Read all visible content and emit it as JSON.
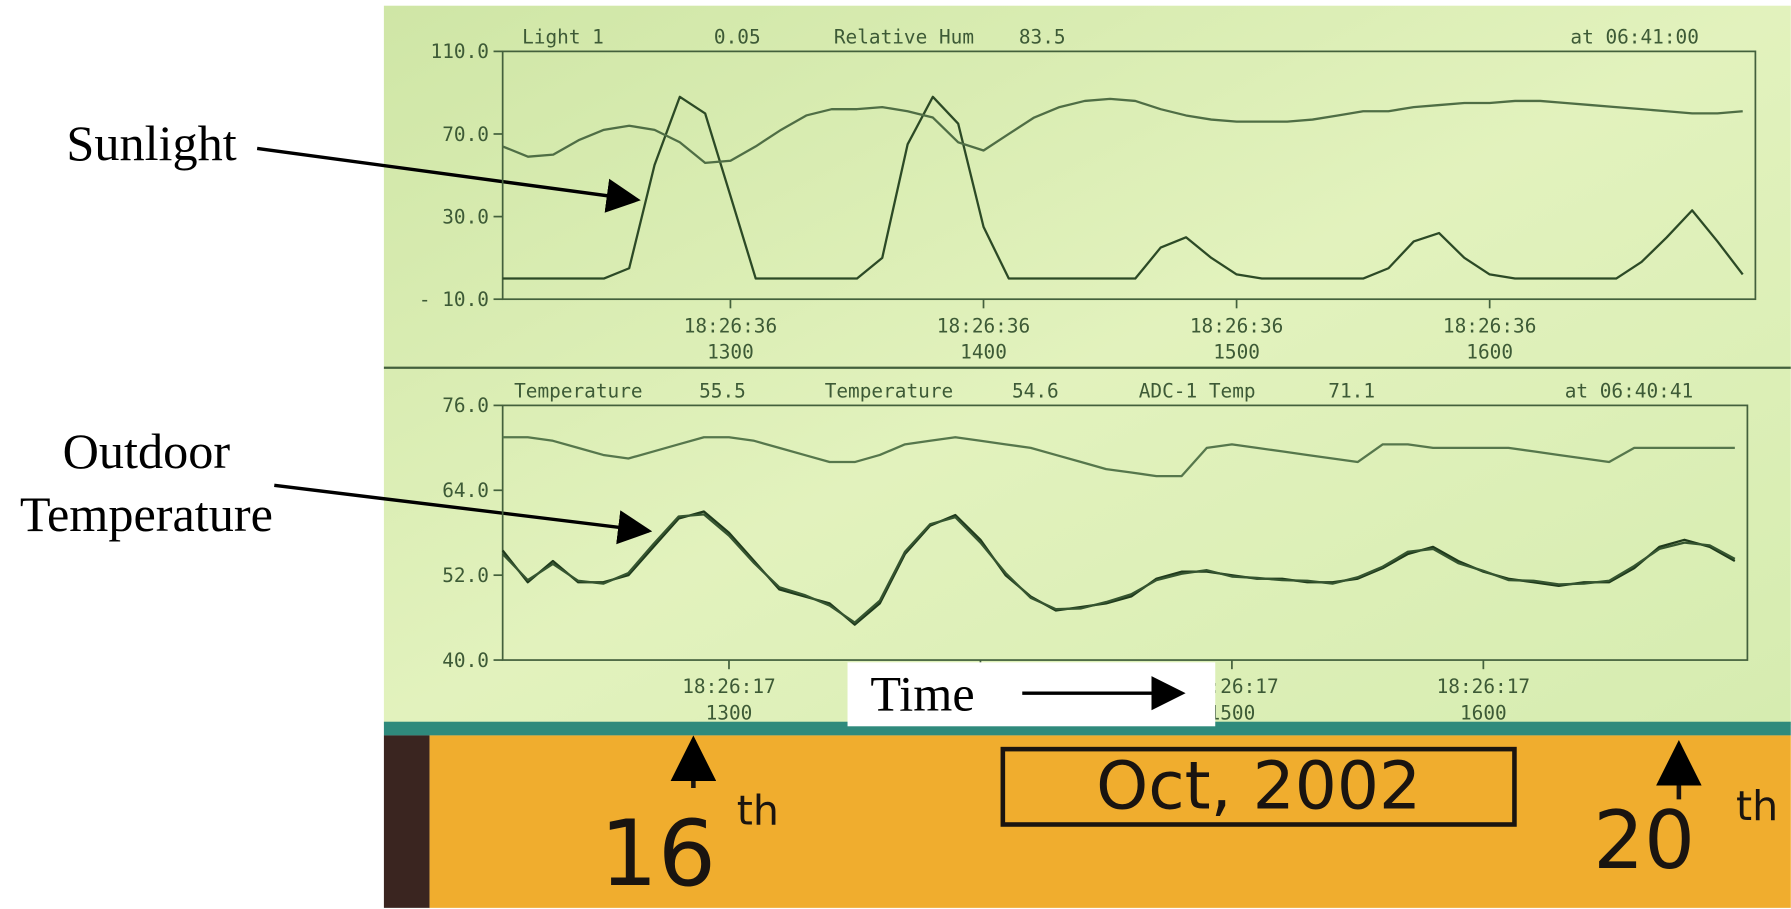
{
  "chart_data": [
    {
      "type": "line",
      "timestamp": "at 06:41:00",
      "x": [
        1210,
        1220,
        1230,
        1240,
        1250,
        1260,
        1270,
        1280,
        1290,
        1300,
        1310,
        1320,
        1330,
        1340,
        1350,
        1360,
        1370,
        1380,
        1390,
        1400,
        1410,
        1420,
        1430,
        1440,
        1450,
        1460,
        1470,
        1480,
        1490,
        1500,
        1510,
        1520,
        1530,
        1540,
        1550,
        1560,
        1570,
        1580,
        1590,
        1600,
        1610,
        1620,
        1630,
        1640,
        1650,
        1660,
        1670,
        1680,
        1690,
        1700
      ],
      "xlim": [
        1210,
        1705
      ],
      "xticks": [
        {
          "value": 1300,
          "label": "1300",
          "time": "18:26:36"
        },
        {
          "value": 1400,
          "label": "1400",
          "time": "18:26:36"
        },
        {
          "value": 1500,
          "label": "1500",
          "time": "18:26:36"
        },
        {
          "value": 1600,
          "label": "1600",
          "time": "18:26:36"
        }
      ],
      "ylim": [
        -10,
        110
      ],
      "yticks": [
        {
          "value": -10,
          "label": "- 10.0"
        },
        {
          "value": 30,
          "label": "30.0"
        },
        {
          "value": 70,
          "label": "70.0"
        },
        {
          "value": 110,
          "label": "110.0"
        }
      ],
      "series": [
        {
          "name": "Light 1",
          "reading": 0.05,
          "color": "#2c4a26",
          "values": [
            0,
            0,
            0,
            0,
            0,
            5,
            55,
            88,
            80,
            40,
            0,
            0,
            0,
            0,
            0,
            10,
            65,
            88,
            75,
            25,
            0,
            0,
            0,
            0,
            0,
            0,
            15,
            20,
            10,
            2,
            0,
            0,
            0,
            0,
            0,
            5,
            18,
            22,
            10,
            2,
            0,
            0,
            0,
            0,
            0,
            8,
            20,
            33,
            18,
            2
          ]
        },
        {
          "name": "Relative Hum",
          "reading": 83.5,
          "color": "#4f6e45",
          "values": [
            64,
            59,
            60,
            67,
            72,
            74,
            72,
            66,
            56,
            57,
            64,
            72,
            79,
            82,
            82,
            83,
            81,
            78,
            66,
            62,
            70,
            78,
            83,
            86,
            87,
            86,
            82,
            79,
            77,
            76,
            76,
            76,
            77,
            79,
            81,
            81,
            83,
            84,
            85,
            85,
            86,
            86,
            85,
            84,
            83,
            82,
            81,
            80,
            80,
            81
          ]
        }
      ]
    },
    {
      "type": "line",
      "timestamp": "at 06:40:41",
      "x": [
        1210,
        1220,
        1230,
        1240,
        1250,
        1260,
        1270,
        1280,
        1290,
        1300,
        1310,
        1320,
        1330,
        1340,
        1350,
        1360,
        1370,
        1380,
        1390,
        1400,
        1410,
        1420,
        1430,
        1440,
        1450,
        1460,
        1470,
        1480,
        1490,
        1500,
        1510,
        1520,
        1530,
        1540,
        1550,
        1560,
        1570,
        1580,
        1590,
        1600,
        1610,
        1620,
        1630,
        1640,
        1650,
        1660,
        1670,
        1680,
        1690,
        1700
      ],
      "xlim": [
        1210,
        1705
      ],
      "xticks": [
        {
          "value": 1300,
          "label": "1300",
          "time": "18:26:17"
        },
        {
          "value": 1400,
          "label": "1400",
          "time": "18:26:17"
        },
        {
          "value": 1500,
          "label": "1500",
          "time": "18:26:17"
        },
        {
          "value": 1600,
          "label": "1600",
          "time": "18:26:17"
        }
      ],
      "ylim": [
        40,
        76
      ],
      "yticks": [
        {
          "value": 40,
          "label": "40.0"
        },
        {
          "value": 52,
          "label": "52.0"
        },
        {
          "value": 64,
          "label": "64.0"
        },
        {
          "value": 76,
          "label": "76.0"
        }
      ],
      "series": [
        {
          "name": "Temperature",
          "reading": 55.5,
          "color": "#1f3a1c",
          "values": [
            55.5,
            51,
            54,
            51,
            51,
            52,
            56,
            60,
            61,
            58,
            54,
            50,
            49,
            48,
            45,
            48,
            55,
            59,
            60.5,
            57,
            52,
            49,
            47,
            47.5,
            48,
            49,
            51.5,
            52.5,
            52.5,
            52,
            51.5,
            51.5,
            51,
            51,
            51.5,
            53,
            55,
            56,
            54,
            52.5,
            51.5,
            51,
            50.5,
            51,
            51,
            53,
            56,
            57,
            56,
            54
          ]
        },
        {
          "name": "Temperature",
          "reading": 54.6,
          "color": "#355530",
          "values": [
            55,
            51.3,
            53.6,
            51.2,
            50.8,
            52.3,
            56.4,
            60.3,
            60.6,
            57.6,
            53.7,
            50.3,
            49.2,
            47.7,
            45.3,
            48.4,
            55.3,
            59.2,
            60.2,
            56.6,
            52.3,
            48.8,
            47.2,
            47.3,
            48.2,
            49.3,
            51.3,
            52.2,
            52.7,
            51.8,
            51.6,
            51.3,
            51.2,
            50.8,
            51.7,
            53.2,
            55.3,
            55.7,
            53.7,
            52.6,
            51.3,
            51.2,
            50.7,
            50.8,
            51.2,
            53.3,
            55.7,
            56.6,
            56.2,
            54.3
          ]
        },
        {
          "name": "ADC-1 Temp",
          "reading": 71.1,
          "color": "#56774c",
          "values": [
            71.5,
            71.5,
            71,
            70,
            69,
            68.5,
            69.5,
            70.5,
            71.5,
            71.5,
            71,
            70,
            69,
            68,
            68,
            69,
            70.5,
            71,
            71.5,
            71,
            70.5,
            70,
            69,
            68,
            67,
            66.5,
            66,
            66,
            70,
            70.5,
            70,
            69.5,
            69,
            68.5,
            68,
            70.5,
            70.5,
            70,
            70,
            70,
            70,
            69.5,
            69,
            68.5,
            68,
            70,
            70,
            70,
            70,
            70
          ]
        }
      ]
    }
  ],
  "annotations": [
    {
      "lines": [
        "Sunlight"
      ]
    },
    {
      "lines": [
        "Outdoor",
        "Temperature"
      ]
    },
    {
      "lines": [
        "Time"
      ]
    }
  ],
  "handwriting": [
    {
      "lines": [
        "16",
        "th"
      ]
    },
    {
      "lines": [
        "Oct, 2002"
      ]
    },
    {
      "lines": [
        "20",
        "th"
      ]
    }
  ]
}
